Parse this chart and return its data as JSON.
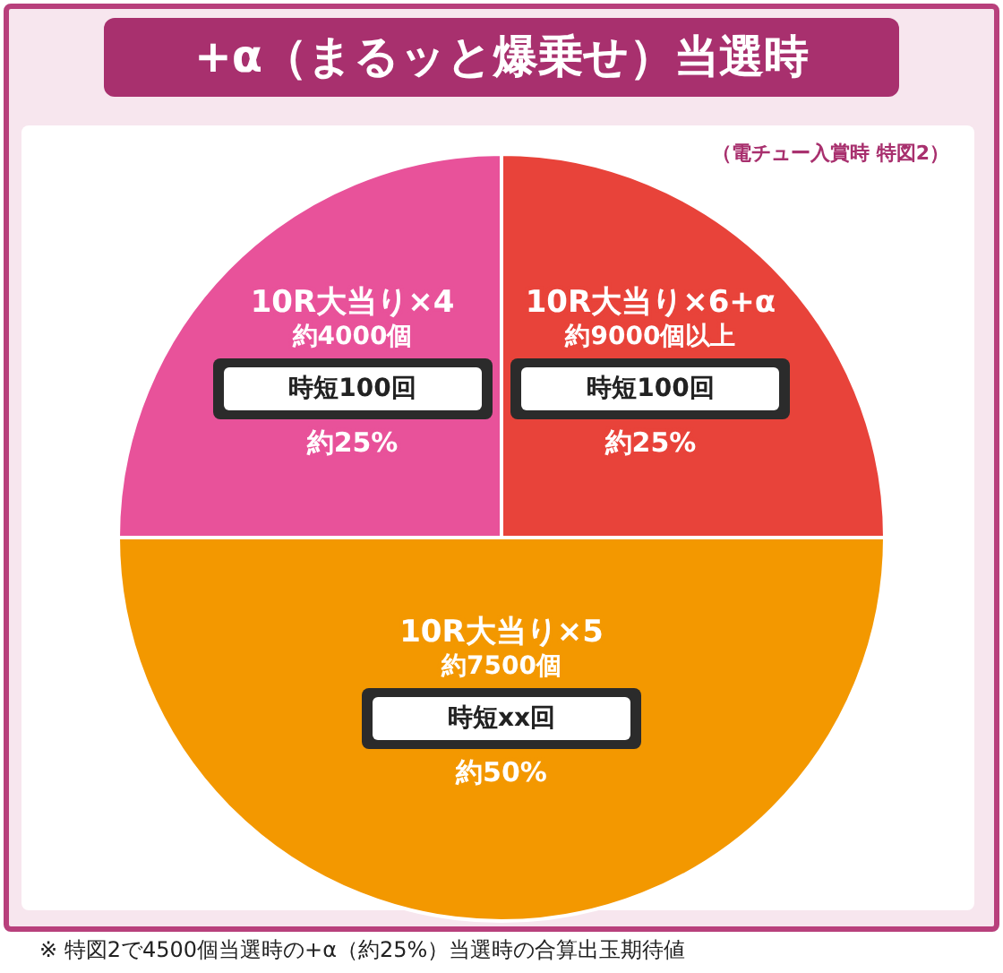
{
  "chart_data": {
    "type": "pie",
    "title": "+α（まるッと爆乗せ）当選時",
    "subtitle": "（電チュー入賞時 特図2）",
    "categories": [
      "10R大当り×6+α",
      "10R大当り×5",
      "10R大当り×4"
    ],
    "values": [
      25,
      50,
      25
    ],
    "colors": [
      "#e8433a",
      "#f39800",
      "#e8529a"
    ],
    "value_labels": [
      "約25%",
      "約50%",
      "約25%"
    ],
    "legend": false,
    "annotations": [
      {
        "text": "約9000個以上",
        "x": "10R大当り×6+α"
      },
      {
        "text": "時短100回",
        "x": "10R大当り×6+α"
      },
      {
        "text": "約7500個",
        "x": "10R大当り×5"
      },
      {
        "text": "時短xx回",
        "x": "10R大当り×5"
      },
      {
        "text": "約4000個",
        "x": "10R大当り×4"
      },
      {
        "text": "時短100回",
        "x": "10R大当り×4"
      },
      "※ 特図2で4500個当選時の+α（約25%）当選時の合算出玉期待値"
    ]
  }
}
